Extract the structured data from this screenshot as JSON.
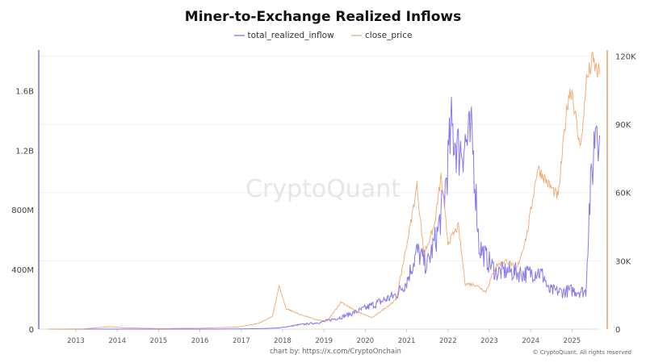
{
  "chart_data": {
    "type": "line",
    "title": "Miner-to-Exchange Realized Inflows",
    "legend_placement": "top",
    "grid": true,
    "x_ticks": [
      "2013",
      "2014",
      "2015",
      "2016",
      "2017",
      "2018",
      "2019",
      "2020",
      "2021",
      "2022",
      "2023",
      "2024",
      "2025"
    ],
    "y_left": {
      "ticks": [
        "0",
        "400M",
        "800M",
        "1.2B",
        "1.6B"
      ],
      "tick_values": [
        0,
        400000000,
        800000000,
        1200000000,
        1600000000
      ],
      "range": [
        0,
        1970000000
      ]
    },
    "y_right": {
      "ticks": [
        "0",
        "30K",
        "60K",
        "90K",
        "120K"
      ],
      "tick_values": [
        0,
        30000,
        60000,
        90000,
        120000
      ],
      "range": [
        0,
        129000
      ]
    },
    "series": [
      {
        "name": "total_realized_inflow",
        "axis": "left",
        "color": "#7b68ee",
        "points": [
          [
            "2012-05",
            0
          ],
          [
            "2013-06",
            0
          ],
          [
            "2015-01",
            0
          ],
          [
            "2016-06",
            0
          ],
          [
            "2017-06",
            3000000
          ],
          [
            "2017-12",
            8000000
          ],
          [
            "2018-06",
            30000000
          ],
          [
            "2018-12",
            45000000
          ],
          [
            "2019-06",
            80000000
          ],
          [
            "2019-12",
            130000000
          ],
          [
            "2020-06",
            190000000
          ],
          [
            "2020-10",
            230000000
          ],
          [
            "2021-01",
            320000000
          ],
          [
            "2021-04",
            520000000
          ],
          [
            "2021-07",
            430000000
          ],
          [
            "2021-10",
            650000000
          ],
          [
            "2021-12",
            900000000
          ],
          [
            "2022-02",
            1350000000
          ],
          [
            "2022-04",
            1200000000
          ],
          [
            "2022-06",
            1250000000
          ],
          [
            "2022-08",
            1280000000
          ],
          [
            "2022-09",
            950000000
          ],
          [
            "2022-10",
            560000000
          ],
          [
            "2022-12",
            480000000
          ],
          [
            "2023-03",
            380000000
          ],
          [
            "2023-06",
            390000000
          ],
          [
            "2023-09",
            380000000
          ],
          [
            "2023-12",
            370000000
          ],
          [
            "2024-03",
            390000000
          ],
          [
            "2024-05",
            350000000
          ],
          [
            "2024-06",
            260000000
          ],
          [
            "2024-10",
            250000000
          ],
          [
            "2025-01",
            260000000
          ],
          [
            "2025-05",
            250000000
          ],
          [
            "2025-06",
            800000000
          ],
          [
            "2025-07",
            1100000000
          ],
          [
            "2025-08",
            1450000000
          ],
          [
            "2025-09",
            1300000000
          ]
        ]
      },
      {
        "name": "close_price",
        "axis": "right",
        "color": "#f0a060",
        "points": [
          [
            "2012-05",
            5
          ],
          [
            "2013-03",
            90
          ],
          [
            "2013-11",
            1100
          ],
          [
            "2014-03",
            600
          ],
          [
            "2015-01",
            250
          ],
          [
            "2016-01",
            400
          ],
          [
            "2016-12",
            900
          ],
          [
            "2017-06",
            2500
          ],
          [
            "2017-10",
            5500
          ],
          [
            "2017-12",
            19000
          ],
          [
            "2018-02",
            9000
          ],
          [
            "2018-06",
            6500
          ],
          [
            "2018-11",
            4000
          ],
          [
            "2019-02",
            3600
          ],
          [
            "2019-06",
            12000
          ],
          [
            "2019-10",
            8000
          ],
          [
            "2020-03",
            5000
          ],
          [
            "2020-07",
            9500
          ],
          [
            "2020-10",
            13000
          ],
          [
            "2020-12",
            29000
          ],
          [
            "2021-02",
            45000
          ],
          [
            "2021-04",
            63000
          ],
          [
            "2021-06",
            33000
          ],
          [
            "2021-09",
            45000
          ],
          [
            "2021-11",
            67000
          ],
          [
            "2022-01",
            38000
          ],
          [
            "2022-04",
            45000
          ],
          [
            "2022-06",
            20000
          ],
          [
            "2022-09",
            19500
          ],
          [
            "2022-12",
            16500
          ],
          [
            "2023-03",
            28000
          ],
          [
            "2023-06",
            30000
          ],
          [
            "2023-09",
            26500
          ],
          [
            "2023-12",
            42000
          ],
          [
            "2024-03",
            71000
          ],
          [
            "2024-06",
            64000
          ],
          [
            "2024-09",
            58000
          ],
          [
            "2024-11",
            90000
          ],
          [
            "2024-12",
            103000
          ],
          [
            "2025-01",
            105000
          ],
          [
            "2025-03",
            82000
          ],
          [
            "2025-04",
            85000
          ],
          [
            "2025-05",
            108000
          ],
          [
            "2025-07",
            118000
          ],
          [
            "2025-08",
            114000
          ],
          [
            "2025-09",
            112000
          ]
        ]
      }
    ]
  },
  "watermark": "CryptoQuant",
  "footer": {
    "chart_by": "chart by: ",
    "link": "https://x.com/CryptoOnchain",
    "copyright": "© CryptoQuant. All rights reserved"
  }
}
